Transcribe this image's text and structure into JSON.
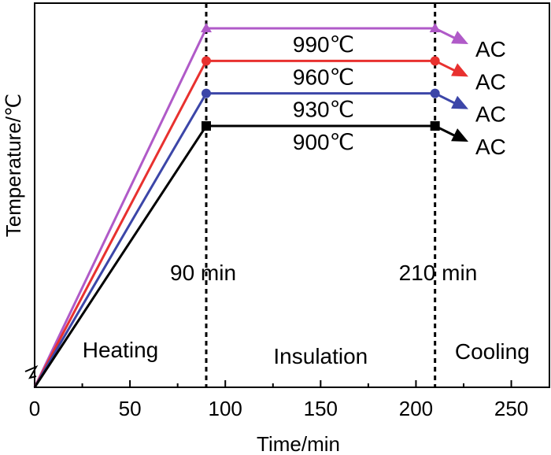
{
  "chart_data": {
    "type": "line",
    "title": "",
    "xlabel": "Time/min",
    "ylabel": "Temperature/℃",
    "xlim": [
      0,
      270
    ],
    "xticks": [
      0,
      50,
      100,
      150,
      200,
      250
    ],
    "y_tick_labels_shown": false,
    "grid": false,
    "series": [
      {
        "label": "990℃",
        "temperature": 990,
        "color": "#b05ac8",
        "marker": "triangle",
        "x": [
          0,
          90,
          210,
          225
        ],
        "end_label": "AC"
      },
      {
        "label": "960℃",
        "temperature": 960,
        "color": "#e8312f",
        "marker": "circle",
        "x": [
          0,
          90,
          210,
          225
        ],
        "end_label": "AC"
      },
      {
        "label": "930℃",
        "temperature": 930,
        "color": "#3c46a8",
        "marker": "circle",
        "x": [
          0,
          90,
          210,
          225
        ],
        "end_label": "AC"
      },
      {
        "label": "900℃",
        "temperature": 900,
        "color": "#000000",
        "marker": "square",
        "x": [
          0,
          90,
          210,
          225
        ],
        "end_label": "AC"
      }
    ],
    "vertical_lines": [
      {
        "x": 90,
        "label": "90 min"
      },
      {
        "x": 210,
        "label": "210 min"
      }
    ],
    "stages": [
      "Heating",
      "Insulation",
      "Cooling"
    ]
  }
}
